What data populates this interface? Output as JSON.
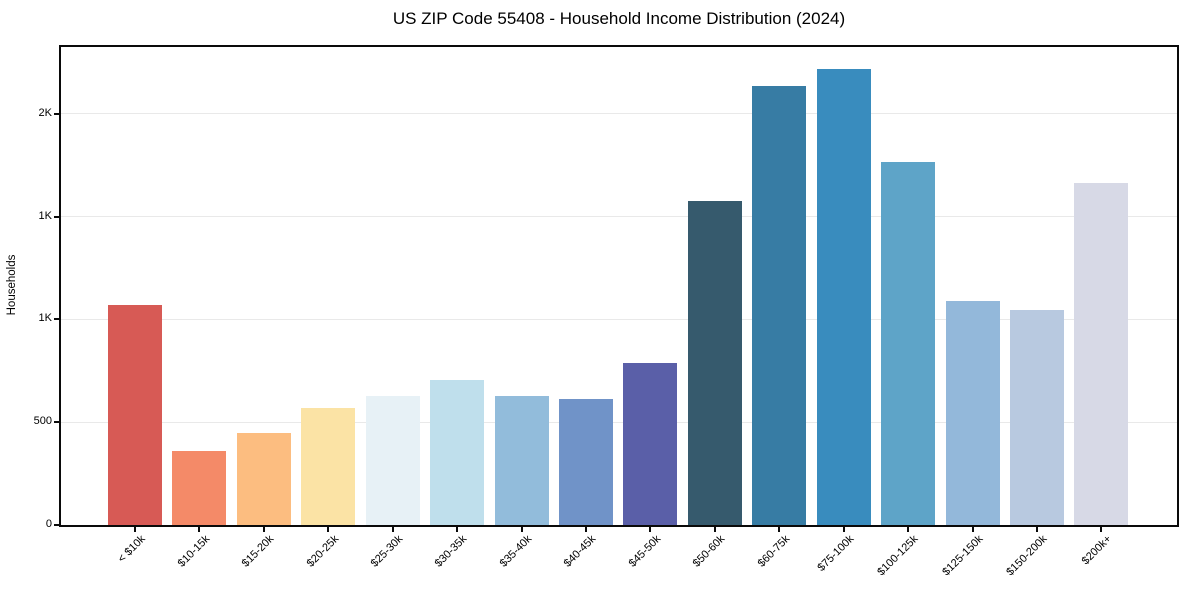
{
  "title": "US ZIP Code 55408 - Household Income Distribution (2024)",
  "chart_data": {
    "type": "bar",
    "title": "US ZIP Code 55408 - Household Income Distribution (2024)",
    "xlabel": "",
    "ylabel": "Households",
    "categories": [
      "< $10k",
      "$10-15k",
      "$15-20k",
      "$20-25k",
      "$25-30k",
      "$30-35k",
      "$35-40k",
      "$40-45k",
      "$45-50k",
      "$50-60k",
      "$60-75k",
      "$75-100k",
      "$100-125k",
      "$125-150k",
      "$150-200k",
      "$200k+"
    ],
    "values": [
      1072,
      362,
      449,
      570,
      628,
      705,
      626,
      614,
      787,
      1575,
      2135,
      2218,
      1768,
      1092,
      1048,
      1662
    ],
    "bar_colors": [
      "#d75a55",
      "#f48a68",
      "#fcbd80",
      "#fbe3a5",
      "#e7f1f6",
      "#bfdfec",
      "#92bcdb",
      "#7093c8",
      "#5a5fa8",
      "#365a6d",
      "#377ca4",
      "#398cbe",
      "#5ea4c8",
      "#93b8da",
      "#b8c9e0",
      "#d7d9e6"
    ],
    "yticks": [
      {
        "value": 0,
        "label": "0"
      },
      {
        "value": 500,
        "label": "500"
      },
      {
        "value": 1000,
        "label": "1K"
      },
      {
        "value": 1500,
        "label": "1K"
      },
      {
        "value": 2000,
        "label": "2K"
      }
    ],
    "ylim": [
      0,
      2325
    ],
    "grid": "horizontal-only",
    "legend": "none",
    "gridline_color": "#e9e9e9",
    "axis_color": "#0a0a0a",
    "background_color": "#ffffff"
  }
}
